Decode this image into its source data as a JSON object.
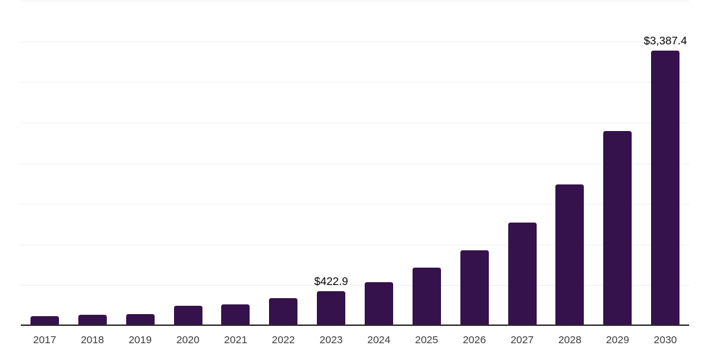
{
  "chart_data": {
    "type": "bar",
    "title": "",
    "xlabel": "",
    "ylabel": "",
    "categories": [
      "2017",
      "2018",
      "2019",
      "2020",
      "2021",
      "2022",
      "2023",
      "2024",
      "2025",
      "2026",
      "2027",
      "2028",
      "2029",
      "2030"
    ],
    "values": [
      122,
      135,
      147,
      250,
      262,
      341,
      422.9,
      540,
      717,
      932,
      1271,
      1740,
      2400,
      3387.4
    ],
    "value_labels": [
      "",
      "",
      "",
      "",
      "",
      "",
      "$422.9",
      "",
      "",
      "",
      "",
      "",
      "",
      "$3,387.4"
    ],
    "ylim": [
      0,
      4000
    ],
    "gridline_step": 500,
    "grid": true,
    "legend_position": "none",
    "colors": {
      "bar": "#35124B",
      "axis_line": "#2B2B2B",
      "gridline": "#F0F0F0",
      "tick_label": "#3C3C3C",
      "value_label": "#000000",
      "background": "#FFFFFF"
    }
  }
}
